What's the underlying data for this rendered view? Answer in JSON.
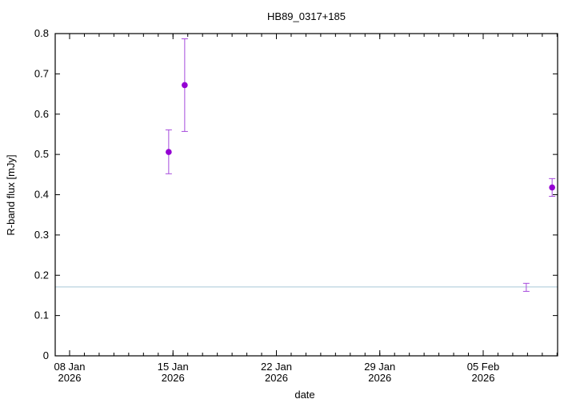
{
  "chart_data": {
    "type": "scatter",
    "title": "HB89_0317+185",
    "xlabel": "date",
    "ylabel": "R-band flux [mJy]",
    "ylim": [
      0,
      0.8
    ],
    "xlim": [
      "2026-01-07",
      "2026-02-11"
    ],
    "grid": false,
    "yticks": [
      "0",
      "0.1",
      "0.2",
      "0.3",
      "0.4",
      "0.5",
      "0.6",
      "0.7",
      "0.8"
    ],
    "xticks": [
      {
        "date": "2026-01-08",
        "label1": "08 Jan",
        "label2": "2026"
      },
      {
        "date": "2026-01-15",
        "label1": "15 Jan",
        "label2": "2026"
      },
      {
        "date": "2026-01-22",
        "label1": "22 Jan",
        "label2": "2026"
      },
      {
        "date": "2026-01-29",
        "label1": "29 Jan",
        "label2": "2026"
      },
      {
        "date": "2026-02-05",
        "label1": "05 Feb",
        "label2": "2026"
      }
    ],
    "points": [
      {
        "date": "2026-01-14T17:00",
        "y": 0.506,
        "ylow": 0.452,
        "yhigh": 0.561,
        "marker": true
      },
      {
        "date": "2026-01-15T19:00",
        "y": 0.672,
        "ylow": 0.557,
        "yhigh": 0.787,
        "marker": true
      },
      {
        "date": "2026-02-07T22:00",
        "y": 0.17,
        "ylow": 0.16,
        "yhigh": 0.18,
        "marker": false
      },
      {
        "date": "2026-02-09T16:00",
        "y": 0.418,
        "ylow": 0.396,
        "yhigh": 0.44,
        "marker": true
      }
    ],
    "reference_line": 0.171,
    "colors": {
      "point": "#9400d3",
      "errorbar": "#a64bdc",
      "reference_line": "#a8c8d8",
      "axis": "#000000"
    }
  }
}
